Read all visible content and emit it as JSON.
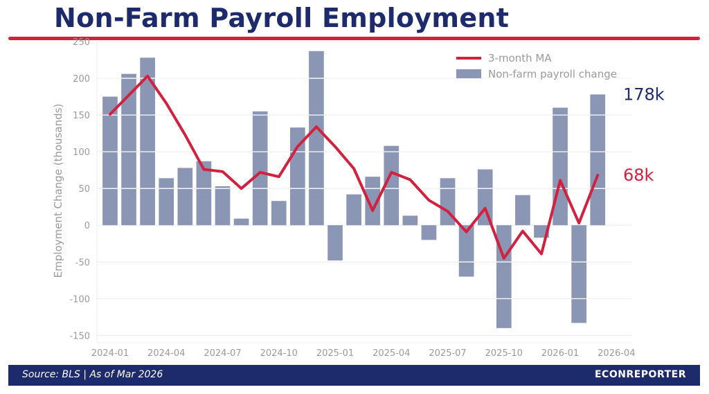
{
  "header": {
    "title": "Non-Farm Payroll Employment"
  },
  "footer": {
    "source": "Source: BLS  |  As of Mar 2026",
    "brand": "ECONREPORTER"
  },
  "colors": {
    "bar": "#8b96b4",
    "ma_line": "#d1213f",
    "navy": "#1d2a6b",
    "grid": "#ececec"
  },
  "chart_data": {
    "type": "bar",
    "ylabel": "Employment Change (thousands)",
    "ylim": [
      -160,
      250
    ],
    "yticks": [
      -150,
      -100,
      -50,
      0,
      50,
      100,
      150,
      200,
      250
    ],
    "xticks": [
      "2024-01",
      "2024-04",
      "2024-07",
      "2024-10",
      "2025-01",
      "2025-04",
      "2025-07",
      "2025-10",
      "2026-01",
      "2026-04"
    ],
    "x": [
      "2024-01",
      "2024-02",
      "2024-03",
      "2024-04",
      "2024-05",
      "2024-06",
      "2024-07",
      "2024-08",
      "2024-09",
      "2024-10",
      "2024-11",
      "2024-12",
      "2025-01",
      "2025-02",
      "2025-03",
      "2025-04",
      "2025-05",
      "2025-06",
      "2025-07",
      "2025-08",
      "2025-09",
      "2025-10",
      "2025-11",
      "2025-12",
      "2026-01",
      "2026-02",
      "2026-03"
    ],
    "grid": true,
    "legend_position": "top-right",
    "series": [
      {
        "name": "Non-farm payroll change",
        "type": "bar",
        "values": [
          175,
          206,
          228,
          64,
          78,
          87,
          53,
          9,
          155,
          33,
          133,
          237,
          -48,
          42,
          66,
          108,
          13,
          -20,
          64,
          -70,
          76,
          -140,
          41,
          -17,
          160,
          -133,
          178
        ]
      },
      {
        "name": "3-month MA",
        "type": "line",
        "values": [
          151,
          177,
          203,
          166,
          123,
          76,
          73,
          50,
          72,
          66,
          107,
          134,
          107,
          77,
          20,
          72,
          62,
          34,
          19,
          -9,
          23,
          -45,
          -8,
          -39,
          61,
          3,
          68
        ]
      }
    ],
    "annotations": [
      {
        "text": "178k",
        "series": "Non-farm payroll change"
      },
      {
        "text": "68k",
        "series": "3-month MA"
      }
    ]
  }
}
